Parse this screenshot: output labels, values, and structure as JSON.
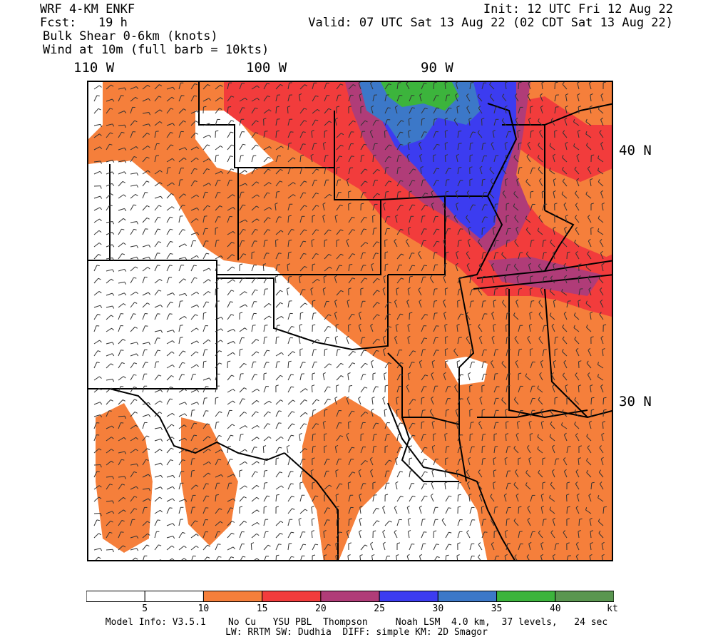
{
  "header": {
    "model": "WRF 4-KM ENKF",
    "forecast": "Fcst:   19 h",
    "field": "Bulk Shear 0-6km (knots)",
    "wind": "Wind at 10m (full barb = 10kts)",
    "init": "Init: 12 UTC Fri 12 Aug 22",
    "valid": "Valid: 07 UTC Sat 13 Aug 22 (02 CDT Sat 13 Aug 22)"
  },
  "longitude_labels": [
    "110 W",
    "100 W",
    "90 W"
  ],
  "latitude_labels": [
    "40 N",
    "30 N"
  ],
  "colorbar": {
    "labels": [
      "5",
      "10",
      "15",
      "20",
      "25",
      "30",
      "35",
      "40"
    ],
    "unit": "kt",
    "bins": [
      {
        "range": [
          0,
          5
        ],
        "color": "#ffffff"
      },
      {
        "range": [
          5,
          10
        ],
        "color": "#ffffff"
      },
      {
        "range": [
          10,
          15
        ],
        "color": "#f57f3b"
      },
      {
        "range": [
          15,
          20
        ],
        "color": "#f23c3c"
      },
      {
        "range": [
          20,
          25
        ],
        "color": "#b03c78"
      },
      {
        "range": [
          25,
          30
        ],
        "color": "#3c3cf0"
      },
      {
        "range": [
          30,
          35
        ],
        "color": "#3c78c8"
      },
      {
        "range": [
          35,
          40
        ],
        "color": "#3cb43c"
      },
      {
        "range": [
          40,
          45
        ],
        "color": "#5a9650"
      }
    ]
  },
  "footer": {
    "line1": "Model Info: V3.5.1    No Cu   YSU PBL  Thompson     Noah LSM  4.0 km,  37 levels,   24 sec",
    "line2": "LW: RRTM SW: Dudhia  DIFF: simple KM: 2D Smagor"
  }
}
